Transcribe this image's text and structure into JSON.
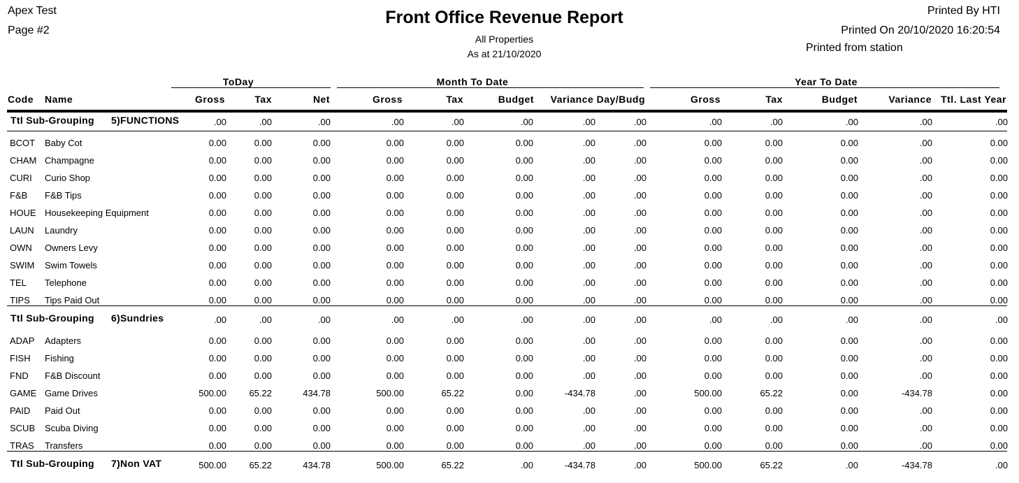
{
  "header": {
    "company": "Apex Test",
    "page": "Page #2",
    "title": "Front Office Revenue Report",
    "subtitle": "All Properties",
    "as_at": "As at 21/10/2020",
    "printed_by": "Printed By HTI",
    "printed_on": "Printed On 20/10/2020 16:20:54",
    "printed_from": "Printed from station"
  },
  "column_groups": [
    "ToDay",
    "Month To Date",
    "Year To Date"
  ],
  "columns": [
    "Code",
    "Name",
    "Gross",
    "Tax",
    "Net",
    "Gross",
    "Tax",
    "Budget",
    "Variance Day/Budg",
    "Gross",
    "Tax",
    "Budget",
    "Variance",
    "Ttl. Last Year"
  ],
  "lines": [
    {
      "label": "Ttl Sub-Grouping",
      "group": "5)FUNCTIONS",
      "values": [
        ".00",
        ".00",
        ".00",
        ".00",
        ".00",
        ".00",
        ".00",
        ".00",
        ".00",
        ".00",
        ".00",
        ".00",
        ".00"
      ]
    },
    {
      "code": "BCOT",
      "name": "Baby Cot",
      "values": [
        "0.00",
        "0.00",
        "0.00",
        "0.00",
        "0.00",
        "0.00",
        ".00",
        ".00",
        "0.00",
        "0.00",
        "0.00",
        ".00",
        "0.00"
      ]
    },
    {
      "code": "CHAM",
      "name": "Champagne",
      "values": [
        "0.00",
        "0.00",
        "0.00",
        "0.00",
        "0.00",
        "0.00",
        ".00",
        ".00",
        "0.00",
        "0.00",
        "0.00",
        ".00",
        "0.00"
      ]
    },
    {
      "code": "CURI",
      "name": "Curio Shop",
      "values": [
        "0.00",
        "0.00",
        "0.00",
        "0.00",
        "0.00",
        "0.00",
        ".00",
        ".00",
        "0.00",
        "0.00",
        "0.00",
        ".00",
        "0.00"
      ]
    },
    {
      "code": "F&B",
      "name": "F&B Tips",
      "values": [
        "0.00",
        "0.00",
        "0.00",
        "0.00",
        "0.00",
        "0.00",
        ".00",
        ".00",
        "0.00",
        "0.00",
        "0.00",
        ".00",
        "0.00"
      ]
    },
    {
      "code": "HOUE",
      "name": "Housekeeping Equipment",
      "values": [
        "0.00",
        "0.00",
        "0.00",
        "0.00",
        "0.00",
        "0.00",
        ".00",
        ".00",
        "0.00",
        "0.00",
        "0.00",
        ".00",
        "0.00"
      ]
    },
    {
      "code": "LAUN",
      "name": "Laundry",
      "values": [
        "0.00",
        "0.00",
        "0.00",
        "0.00",
        "0.00",
        "0.00",
        ".00",
        ".00",
        "0.00",
        "0.00",
        "0.00",
        ".00",
        "0.00"
      ]
    },
    {
      "code": "OWN",
      "name": "Owners Levy",
      "values": [
        "0.00",
        "0.00",
        "0.00",
        "0.00",
        "0.00",
        "0.00",
        ".00",
        ".00",
        "0.00",
        "0.00",
        "0.00",
        ".00",
        "0.00"
      ]
    },
    {
      "code": "SWIM",
      "name": "Swim Towels",
      "values": [
        "0.00",
        "0.00",
        "0.00",
        "0.00",
        "0.00",
        "0.00",
        ".00",
        ".00",
        "0.00",
        "0.00",
        "0.00",
        ".00",
        "0.00"
      ]
    },
    {
      "code": "TEL",
      "name": "Telephone",
      "values": [
        "0.00",
        "0.00",
        "0.00",
        "0.00",
        "0.00",
        "0.00",
        ".00",
        ".00",
        "0.00",
        "0.00",
        "0.00",
        ".00",
        "0.00"
      ]
    },
    {
      "code": "TIPS",
      "name": "Tips Paid Out",
      "values": [
        "0.00",
        "0.00",
        "0.00",
        "0.00",
        "0.00",
        "0.00",
        ".00",
        ".00",
        "0.00",
        "0.00",
        "0.00",
        ".00",
        "0.00"
      ]
    },
    {
      "label": "Ttl Sub-Grouping",
      "group": "6)Sundries",
      "values": [
        ".00",
        ".00",
        ".00",
        ".00",
        ".00",
        ".00",
        ".00",
        ".00",
        ".00",
        ".00",
        ".00",
        ".00",
        ".00"
      ]
    },
    {
      "code": "ADAP",
      "name": "Adapters",
      "values": [
        "0.00",
        "0.00",
        "0.00",
        "0.00",
        "0.00",
        "0.00",
        ".00",
        ".00",
        "0.00",
        "0.00",
        "0.00",
        ".00",
        "0.00"
      ]
    },
    {
      "code": "FISH",
      "name": "Fishing",
      "values": [
        "0.00",
        "0.00",
        "0.00",
        "0.00",
        "0.00",
        "0.00",
        ".00",
        ".00",
        "0.00",
        "0.00",
        "0.00",
        ".00",
        "0.00"
      ]
    },
    {
      "code": "FND",
      "name": "F&B Discount",
      "values": [
        "0.00",
        "0.00",
        "0.00",
        "0.00",
        "0.00",
        "0.00",
        ".00",
        ".00",
        "0.00",
        "0.00",
        "0.00",
        ".00",
        "0.00"
      ]
    },
    {
      "code": "GAME",
      "name": "Game Drives",
      "values": [
        "500.00",
        "65.22",
        "434.78",
        "500.00",
        "65.22",
        "0.00",
        "-434.78",
        ".00",
        "500.00",
        "65.22",
        "0.00",
        "-434.78",
        "0.00"
      ]
    },
    {
      "code": "PAID",
      "name": "Paid Out",
      "values": [
        "0.00",
        "0.00",
        "0.00",
        "0.00",
        "0.00",
        "0.00",
        ".00",
        ".00",
        "0.00",
        "0.00",
        "0.00",
        ".00",
        "0.00"
      ]
    },
    {
      "code": "SCUB",
      "name": "Scuba Diving",
      "values": [
        "0.00",
        "0.00",
        "0.00",
        "0.00",
        "0.00",
        "0.00",
        ".00",
        ".00",
        "0.00",
        "0.00",
        "0.00",
        ".00",
        "0.00"
      ]
    },
    {
      "code": "TRAS",
      "name": "Transfers",
      "values": [
        "0.00",
        "0.00",
        "0.00",
        "0.00",
        "0.00",
        "0.00",
        ".00",
        ".00",
        "0.00",
        "0.00",
        "0.00",
        ".00",
        "0.00"
      ]
    },
    {
      "label": "Ttl Sub-Grouping",
      "group": "7)Non VAT",
      "values": [
        "500.00",
        "65.22",
        "434.78",
        "500.00",
        "65.22",
        ".00",
        "-434.78",
        ".00",
        "500.00",
        "65.22",
        ".00",
        "-434.78",
        ".00"
      ]
    }
  ]
}
